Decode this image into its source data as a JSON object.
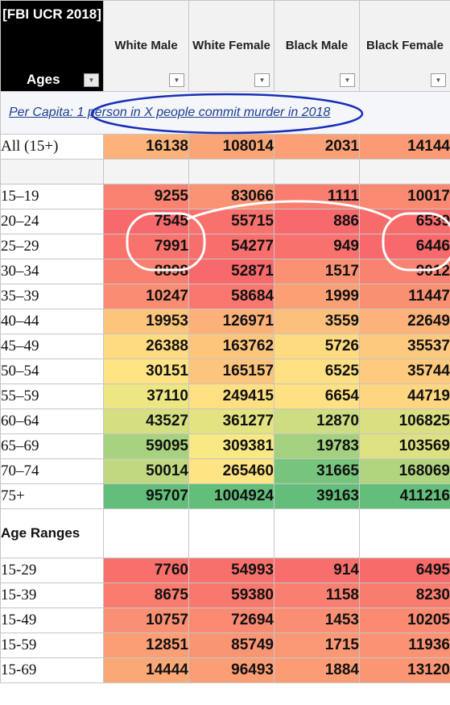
{
  "header": {
    "corner_title": "[FBI UCR 2018]",
    "corner_label": "Ages",
    "columns": [
      "White Male",
      "White Female",
      "Black Male",
      "Black Female"
    ],
    "dropdown_icon": "dropdown-arrow-icon"
  },
  "caption": "Per Capita: 1 person in X people commit murder in 2018",
  "all_row": {
    "label": "All (15+)",
    "values": [
      "16138",
      "108014",
      "2031",
      "14144"
    ]
  },
  "age_rows": [
    {
      "label": "15–19",
      "values": [
        "9255",
        "83066",
        "1111",
        "10017"
      ]
    },
    {
      "label": "20–24",
      "values": [
        "7545",
        "55715",
        "886",
        "6539"
      ]
    },
    {
      "label": "25–29",
      "values": [
        "7991",
        "54277",
        "949",
        "6446"
      ]
    },
    {
      "label": "30–34",
      "values": [
        "8898",
        "52871",
        "1517",
        "9012"
      ]
    },
    {
      "label": "35–39",
      "values": [
        "10247",
        "58684",
        "1999",
        "11447"
      ]
    },
    {
      "label": "40–44",
      "values": [
        "19953",
        "126971",
        "3559",
        "22649"
      ]
    },
    {
      "label": "45–49",
      "values": [
        "26388",
        "163762",
        "5726",
        "35537"
      ]
    },
    {
      "label": "50–54",
      "values": [
        "30151",
        "165157",
        "6525",
        "35744"
      ]
    },
    {
      "label": "55–59",
      "values": [
        "37110",
        "249415",
        "6654",
        "44719"
      ]
    },
    {
      "label": "60–64",
      "values": [
        "43527",
        "361277",
        "12870",
        "106825"
      ]
    },
    {
      "label": "65–69",
      "values": [
        "59095",
        "309381",
        "19783",
        "103569"
      ]
    },
    {
      "label": "70–74",
      "values": [
        "50014",
        "265460",
        "31665",
        "168069"
      ]
    },
    {
      "label": "75+",
      "values": [
        "95707",
        "1004924",
        "39163",
        "411216"
      ]
    }
  ],
  "ranges_heading": "Age Ranges",
  "range_rows": [
    {
      "label": "15-29",
      "values": [
        "7760",
        "54993",
        "914",
        "6495"
      ]
    },
    {
      "label": "15-39",
      "values": [
        "8675",
        "59380",
        "1158",
        "8230"
      ]
    },
    {
      "label": "15-49",
      "values": [
        "10757",
        "72694",
        "1453",
        "10205"
      ]
    },
    {
      "label": "15-59",
      "values": [
        "12851",
        "85749",
        "1715",
        "11936"
      ]
    },
    {
      "label": "15-69",
      "values": [
        "14444",
        "96493",
        "1884",
        "13120"
      ]
    }
  ],
  "colors": {
    "red": "#f8696b",
    "orange": "#fba276",
    "yellow": "#ffeb84",
    "green": "#63be7b",
    "caption_oval": "#1a2fb8",
    "highlight_oval": "#ffffff"
  }
}
